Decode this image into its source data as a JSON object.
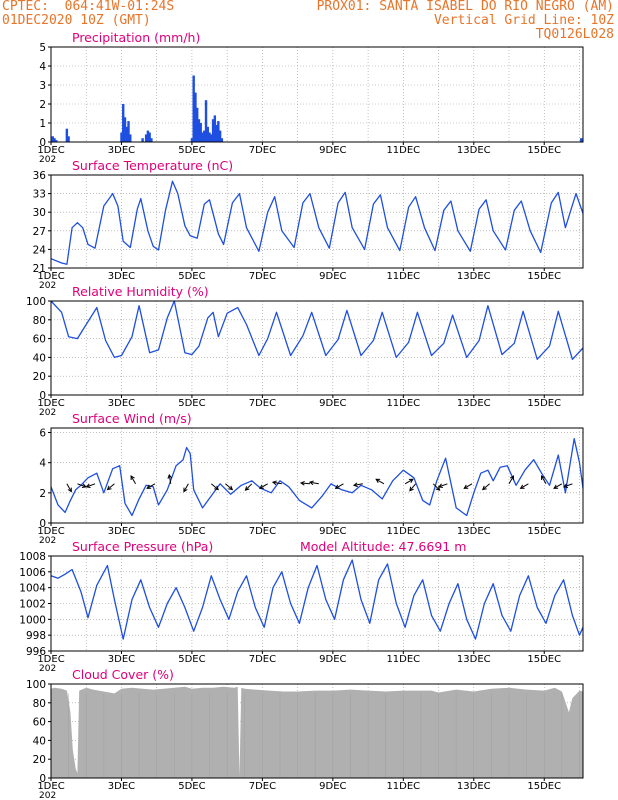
{
  "header": {
    "line1_left": "CPTEC:  064:41W-01:24S",
    "line1_right": "PROX01: SANTA ISABEL DO RIO NEGRO (AM)",
    "line2_left": "01DEC2020 10Z (GMT)",
    "line2_right": "Vertical Grid Line: 10Z",
    "line3_right": "TQ0126L028"
  },
  "colors": {
    "header": "#e8742a",
    "title": "#e0007a",
    "series": "#1f4fe0",
    "cloud": "#b0b0b0",
    "grid": "#9a9a9a"
  },
  "x_axis": {
    "day_start": 1,
    "day_end": 16.1,
    "ticks": [
      1,
      3,
      5,
      7,
      9,
      11,
      13,
      15
    ],
    "tick_labels": [
      "1DEC",
      "3DEC",
      "5DEC",
      "7DEC",
      "9DEC",
      "11DEC",
      "13DEC",
      "15DEC"
    ],
    "sub_label": "202"
  },
  "chart_data": [
    {
      "type": "bar",
      "title": "Precipitation (mm/h)",
      "ylim": [
        0,
        5
      ],
      "yticks": [
        0,
        1,
        2,
        3,
        4,
        5
      ],
      "series": [
        {
          "x": [
            1.05,
            1.1,
            1.15,
            1.45,
            1.5,
            3.0,
            3.05,
            3.1,
            3.15,
            3.2,
            3.25,
            3.6,
            3.7,
            3.75,
            3.8,
            3.85,
            5.0,
            5.05,
            5.1,
            5.15,
            5.2,
            5.25,
            5.3,
            5.35,
            5.4,
            5.45,
            5.5,
            5.55,
            5.6,
            5.65,
            5.7,
            5.75,
            5.8,
            5.85,
            16.05
          ],
          "values": [
            0.3,
            0.2,
            0.1,
            0.7,
            0.3,
            0.5,
            2.0,
            1.3,
            0.8,
            1.1,
            0.4,
            0.2,
            0.4,
            0.6,
            0.5,
            0.2,
            0.2,
            3.5,
            2.6,
            1.8,
            1.2,
            1.0,
            0.5,
            0.6,
            2.2,
            0.8,
            0.5,
            0.4,
            1.2,
            1.4,
            0.9,
            1.1,
            0.6,
            0.2,
            0.2
          ]
        }
      ]
    },
    {
      "type": "line",
      "title": "Surface Temperature (nC)",
      "ylim": [
        21,
        36
      ],
      "yticks": [
        21,
        24,
        27,
        30,
        33,
        36
      ],
      "series": [
        {
          "x": [
            1.0,
            1.3,
            1.45,
            1.6,
            1.75,
            1.9,
            2.05,
            2.25,
            2.5,
            2.75,
            2.9,
            3.05,
            3.25,
            3.45,
            3.55,
            3.75,
            3.9,
            4.05,
            4.25,
            4.45,
            4.6,
            4.8,
            4.95,
            5.15,
            5.35,
            5.5,
            5.75,
            5.9,
            6.15,
            6.35,
            6.55,
            6.9,
            7.15,
            7.35,
            7.55,
            7.9,
            8.15,
            8.35,
            8.6,
            8.9,
            9.15,
            9.35,
            9.55,
            9.9,
            10.15,
            10.35,
            10.55,
            10.9,
            11.15,
            11.35,
            11.6,
            11.9,
            12.15,
            12.35,
            12.55,
            12.9,
            13.15,
            13.35,
            13.55,
            13.9,
            14.15,
            14.35,
            14.6,
            14.9,
            15.2,
            15.4,
            15.6,
            15.9,
            16.1
          ],
          "values": [
            22.5,
            21.8,
            21.6,
            27.5,
            28.3,
            27.5,
            24.8,
            24.2,
            31.0,
            33.0,
            31.0,
            25.3,
            24.3,
            30.5,
            32.2,
            27.0,
            24.5,
            23.9,
            30.3,
            35.0,
            33.0,
            27.8,
            26.2,
            25.8,
            31.3,
            32.0,
            26.5,
            24.8,
            31.5,
            33.0,
            27.5,
            23.7,
            30.0,
            32.5,
            27.0,
            24.3,
            31.5,
            33.0,
            27.5,
            24.2,
            31.5,
            33.2,
            27.5,
            24.0,
            31.3,
            32.8,
            27.5,
            23.8,
            30.8,
            32.5,
            27.5,
            23.8,
            30.3,
            31.8,
            27.0,
            23.7,
            30.5,
            32.0,
            27.0,
            23.9,
            30.3,
            31.8,
            27.0,
            23.5,
            31.5,
            33.2,
            27.5,
            33.0,
            29.8
          ]
        }
      ]
    },
    {
      "type": "line",
      "title": "Relative Humidity (%)",
      "ylim": [
        0,
        100
      ],
      "yticks": [
        0,
        20,
        40,
        60,
        80,
        100
      ],
      "series": [
        {
          "x": [
            1.0,
            1.3,
            1.5,
            1.75,
            2.0,
            2.3,
            2.55,
            2.8,
            3.0,
            3.3,
            3.5,
            3.8,
            4.05,
            4.3,
            4.5,
            4.8,
            5.0,
            5.2,
            5.45,
            5.6,
            5.75,
            6.0,
            6.3,
            6.55,
            6.9,
            7.15,
            7.4,
            7.8,
            8.15,
            8.4,
            8.8,
            9.15,
            9.4,
            9.8,
            10.15,
            10.4,
            10.8,
            11.15,
            11.4,
            11.8,
            12.15,
            12.4,
            12.8,
            13.15,
            13.4,
            13.8,
            14.15,
            14.4,
            14.8,
            15.15,
            15.4,
            15.8,
            16.1
          ],
          "values": [
            100,
            88,
            62,
            60,
            75,
            93,
            58,
            40,
            42,
            62,
            95,
            45,
            48,
            82,
            100,
            45,
            43,
            52,
            82,
            88,
            62,
            87,
            93,
            75,
            42,
            60,
            88,
            42,
            63,
            88,
            42,
            59,
            90,
            42,
            58,
            88,
            40,
            56,
            88,
            42,
            55,
            85,
            40,
            58,
            95,
            43,
            55,
            89,
            38,
            52,
            89,
            38,
            50
          ]
        }
      ]
    },
    {
      "type": "line",
      "title": "Surface Wind (m/s)",
      "ylim": [
        0,
        6.3
      ],
      "yticks": [
        0,
        2,
        4,
        6
      ],
      "series": [
        {
          "x": [
            1.0,
            1.2,
            1.4,
            1.55,
            1.7,
            1.85,
            2.05,
            2.3,
            2.5,
            2.75,
            2.95,
            3.1,
            3.3,
            3.5,
            3.7,
            3.9,
            4.05,
            4.3,
            4.55,
            4.75,
            4.85,
            4.95,
            5.05,
            5.3,
            5.55,
            5.8,
            6.1,
            6.4,
            6.7,
            6.95,
            7.25,
            7.5,
            7.75,
            8.05,
            8.4,
            8.7,
            8.95,
            9.25,
            9.55,
            9.8,
            10.1,
            10.4,
            10.7,
            11.0,
            11.3,
            11.55,
            11.75,
            11.95,
            12.2,
            12.5,
            12.8,
            13.0,
            13.2,
            13.4,
            13.55,
            13.75,
            13.95,
            14.2,
            14.45,
            14.7,
            14.95,
            15.15,
            15.4,
            15.6,
            15.85,
            16.0,
            16.1
          ],
          "values": [
            2.4,
            1.2,
            0.7,
            1.5,
            2.2,
            2.5,
            3.0,
            3.3,
            2.0,
            3.6,
            3.8,
            1.3,
            0.5,
            1.6,
            2.5,
            2.4,
            1.2,
            2.2,
            3.8,
            4.2,
            5.0,
            4.6,
            2.2,
            1.0,
            1.8,
            2.6,
            1.9,
            2.5,
            2.8,
            2.3,
            2.0,
            2.8,
            2.4,
            1.5,
            1.0,
            1.8,
            2.6,
            2.2,
            2.0,
            2.5,
            2.2,
            1.6,
            2.8,
            3.5,
            3.0,
            1.5,
            1.2,
            2.8,
            4.3,
            1.0,
            0.5,
            2.0,
            3.3,
            3.5,
            2.8,
            3.7,
            3.8,
            2.5,
            3.5,
            4.2,
            3.2,
            2.5,
            4.5,
            2.0,
            5.6,
            4.0,
            2.3
          ]
        }
      ],
      "arrows": [
        {
          "x": 1.45,
          "dir": -60
        },
        {
          "x": 1.75,
          "dir": -20
        },
        {
          "x": 2.25,
          "dir": 200
        },
        {
          "x": 2.8,
          "dir": 220
        },
        {
          "x": 3.4,
          "dir": 120
        },
        {
          "x": 3.95,
          "dir": 210
        },
        {
          "x": 4.4,
          "dir": 100
        },
        {
          "x": 4.9,
          "dir": 240
        },
        {
          "x": 5.55,
          "dir": -40
        },
        {
          "x": 5.95,
          "dir": -40
        },
        {
          "x": 6.7,
          "dir": 225
        },
        {
          "x": 7.15,
          "dir": 210
        },
        {
          "x": 7.55,
          "dir": 170
        },
        {
          "x": 8.35,
          "dir": 175
        },
        {
          "x": 8.6,
          "dir": 170
        },
        {
          "x": 9.3,
          "dir": 210
        },
        {
          "x": 9.85,
          "dir": 190
        },
        {
          "x": 10.45,
          "dir": 150
        },
        {
          "x": 11.05,
          "dir": 30
        },
        {
          "x": 11.35,
          "dir": 230
        },
        {
          "x": 11.85,
          "dir": -45
        },
        {
          "x": 12.25,
          "dir": 200
        },
        {
          "x": 12.95,
          "dir": 210
        },
        {
          "x": 13.45,
          "dir": 220
        },
        {
          "x": 14.0,
          "dir": 60
        },
        {
          "x": 14.55,
          "dir": 210
        },
        {
          "x": 15.05,
          "dir": 120
        },
        {
          "x": 15.5,
          "dir": 210
        },
        {
          "x": 15.8,
          "dir": 200
        }
      ]
    },
    {
      "type": "line",
      "title": "Surface Pressure (hPa)",
      "annotation": "Model Altitude: 47.6691  m",
      "ylim": [
        996,
        1008
      ],
      "yticks": [
        996,
        998,
        1000,
        1002,
        1004,
        1006,
        1008
      ],
      "series": [
        {
          "x": [
            1.0,
            1.2,
            1.4,
            1.6,
            1.85,
            2.05,
            2.3,
            2.6,
            2.8,
            3.05,
            3.3,
            3.55,
            3.8,
            4.05,
            4.3,
            4.55,
            4.8,
            5.05,
            5.3,
            5.55,
            5.8,
            6.05,
            6.3,
            6.55,
            6.8,
            7.05,
            7.3,
            7.55,
            7.8,
            8.05,
            8.3,
            8.55,
            8.8,
            9.05,
            9.3,
            9.55,
            9.8,
            10.05,
            10.3,
            10.55,
            10.8,
            11.05,
            11.3,
            11.55,
            11.8,
            12.05,
            12.3,
            12.55,
            12.8,
            13.05,
            13.3,
            13.55,
            13.8,
            14.05,
            14.3,
            14.55,
            14.8,
            15.05,
            15.3,
            15.55,
            15.8,
            16.0,
            16.1
          ],
          "values": [
            1005.5,
            1005.2,
            1005.7,
            1006.3,
            1003.5,
            1000.2,
            1004.3,
            1006.8,
            1002.5,
            997.5,
            1002.5,
            1005.0,
            1001.5,
            999.0,
            1002.0,
            1004.0,
            1001.5,
            998.5,
            1001.5,
            1005.5,
            1002.5,
            1000.0,
            1003.5,
            1005.5,
            1001.5,
            999.0,
            1004.0,
            1006.0,
            1002.0,
            999.5,
            1004.0,
            1006.8,
            1002.5,
            1000.0,
            1005.0,
            1007.5,
            1002.5,
            999.5,
            1005.0,
            1007.0,
            1002.0,
            999.0,
            1003.0,
            1005.0,
            1000.5,
            998.5,
            1002.0,
            1004.5,
            1000.0,
            997.5,
            1002.0,
            1004.5,
            1000.5,
            998.5,
            1003.0,
            1005.5,
            1001.5,
            999.5,
            1003.0,
            1005.0,
            1000.5,
            998.0,
            999.0
          ]
        }
      ]
    },
    {
      "type": "area",
      "title": "Cloud Cover (%)",
      "ylim": [
        0,
        100
      ],
      "yticks": [
        0,
        20,
        40,
        60,
        80,
        100
      ],
      "series": [
        {
          "x": [
            1.0,
            1.1,
            1.3,
            1.45,
            1.55,
            1.62,
            1.7,
            1.75,
            1.8,
            2.0,
            2.2,
            2.5,
            2.8,
            3.0,
            3.3,
            3.6,
            3.9,
            4.2,
            4.5,
            4.8,
            5.0,
            5.3,
            5.6,
            5.9,
            6.2,
            6.3,
            6.35,
            6.4,
            6.5,
            6.8,
            7.2,
            7.6,
            8.0,
            8.5,
            9.0,
            9.5,
            10.0,
            10.5,
            11.0,
            11.5,
            11.8,
            12.0,
            12.5,
            13.0,
            13.5,
            14.0,
            14.5,
            15.0,
            15.3,
            15.5,
            15.7,
            15.8,
            16.0,
            16.1
          ],
          "values": [
            95,
            96,
            95,
            93,
            70,
            30,
            10,
            5,
            93,
            96,
            94,
            92,
            90,
            95,
            96,
            95,
            94,
            95,
            96,
            97,
            95,
            96,
            96,
            97,
            96,
            97,
            2,
            96,
            95,
            94,
            93,
            92,
            92,
            93,
            93,
            94,
            93,
            92,
            93,
            93,
            93,
            91,
            94,
            92,
            95,
            96,
            94,
            93,
            96,
            92,
            70,
            85,
            93,
            92
          ]
        }
      ]
    }
  ]
}
